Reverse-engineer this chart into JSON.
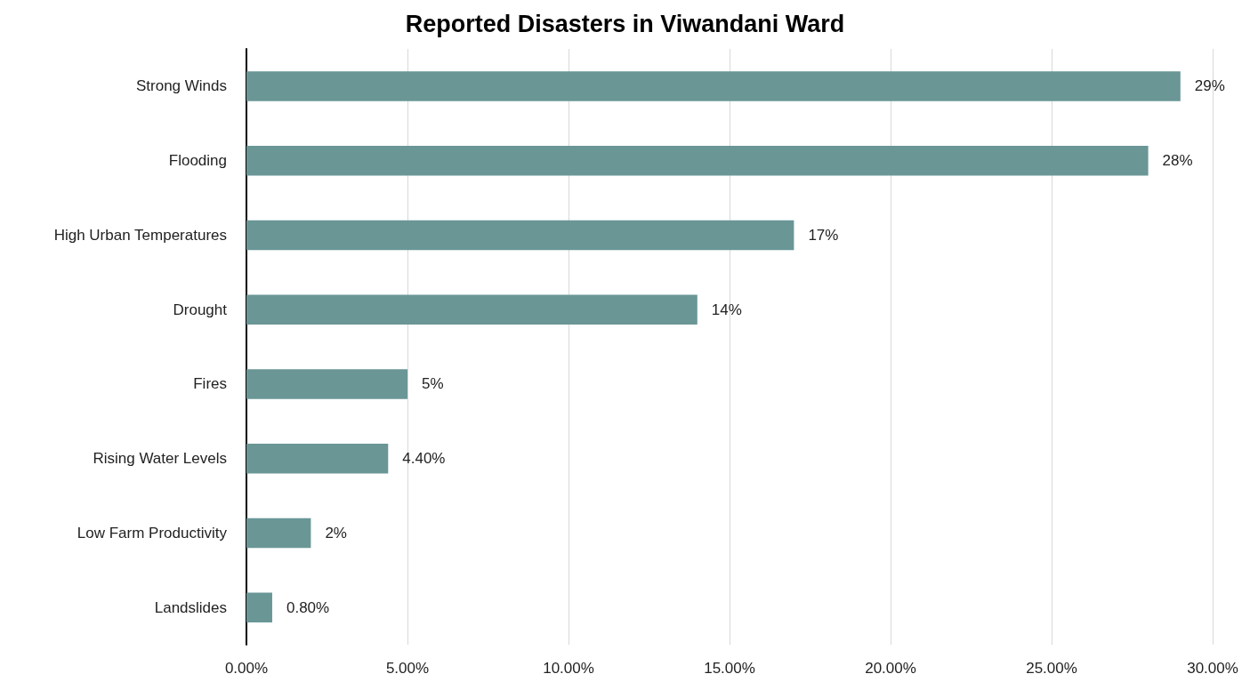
{
  "chart_data": {
    "type": "bar",
    "orientation": "horizontal",
    "title": "Reported Disasters in Viwandani Ward",
    "categories": [
      "Strong Winds",
      "Flooding",
      "High Urban Temperatures",
      "Drought",
      "Fires",
      "Rising Water Levels",
      "Low Farm Productivity",
      "Landslides"
    ],
    "values": [
      29,
      28,
      17,
      14,
      5,
      4.4,
      2,
      0.8
    ],
    "value_labels": [
      "29%",
      "28%",
      "17%",
      "14%",
      "5%",
      "4.40%",
      "2%",
      "0.80%"
    ],
    "color": "#6a9696",
    "xlim": [
      0,
      30
    ],
    "xticks": [
      {
        "value": 0,
        "label": "0.00%"
      },
      {
        "value": 5,
        "label": "5.00%"
      },
      {
        "value": 10,
        "label": "10.00%"
      },
      {
        "value": 15,
        "label": "15.00%"
      },
      {
        "value": 20,
        "label": "20.00%"
      },
      {
        "value": 25,
        "label": "25.00%"
      },
      {
        "value": 30,
        "label": "30.00%"
      }
    ],
    "grid": "x"
  }
}
